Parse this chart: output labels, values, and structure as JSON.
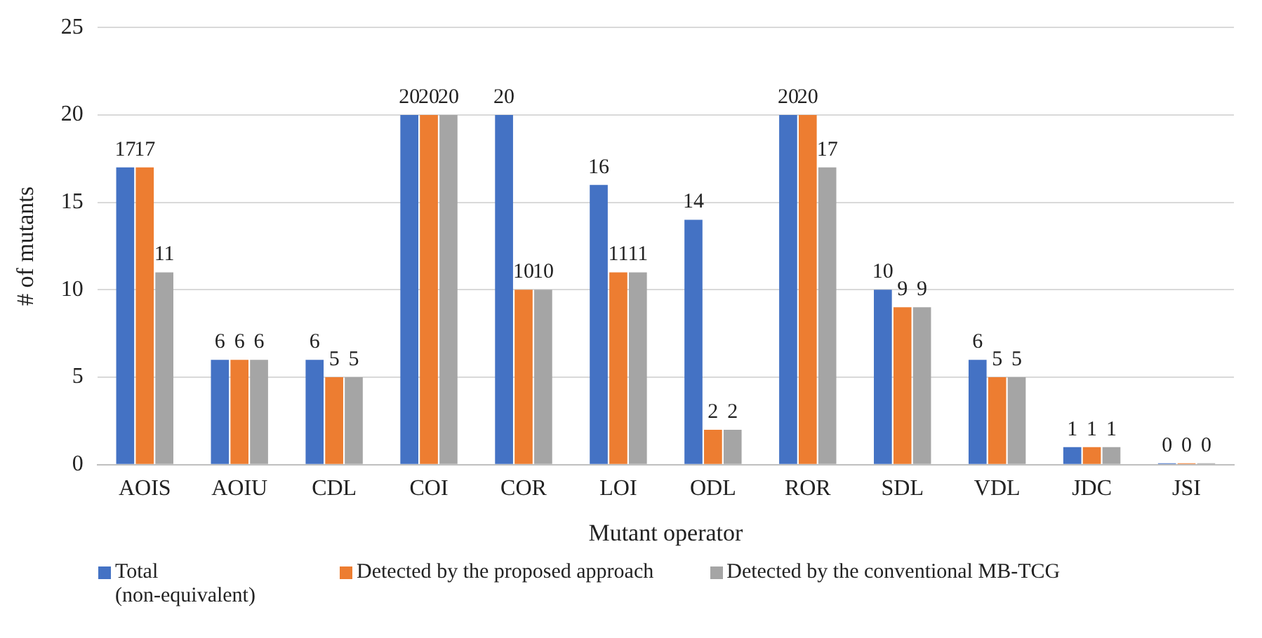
{
  "chart_data": {
    "type": "bar",
    "xlabel": "Mutant operator",
    "ylabel": "# of mutants",
    "categories": [
      "AOIS",
      "AOIU",
      "CDL",
      "COI",
      "COR",
      "LOI",
      "ODL",
      "ROR",
      "SDL",
      "VDL",
      "JDC",
      "JSI"
    ],
    "series": [
      {
        "name": "Total (non-equivalent)",
        "color": "#4472c4",
        "values": [
          17,
          6,
          6,
          20,
          20,
          16,
          14,
          20,
          10,
          6,
          1,
          0
        ]
      },
      {
        "name": "Detected by the proposed approach",
        "color": "#ed7d31",
        "values": [
          17,
          6,
          5,
          20,
          10,
          11,
          2,
          20,
          9,
          5,
          1,
          0
        ]
      },
      {
        "name": "Detected by the conventional MB-TCG",
        "color": "#a5a5a5",
        "values": [
          11,
          6,
          5,
          20,
          10,
          11,
          2,
          17,
          9,
          5,
          1,
          0
        ]
      }
    ],
    "ylim": [
      0,
      25
    ],
    "yticks": [
      0,
      5,
      10,
      15,
      20,
      25
    ],
    "grid": "y",
    "legend": "bottom",
    "data_labels": true
  }
}
